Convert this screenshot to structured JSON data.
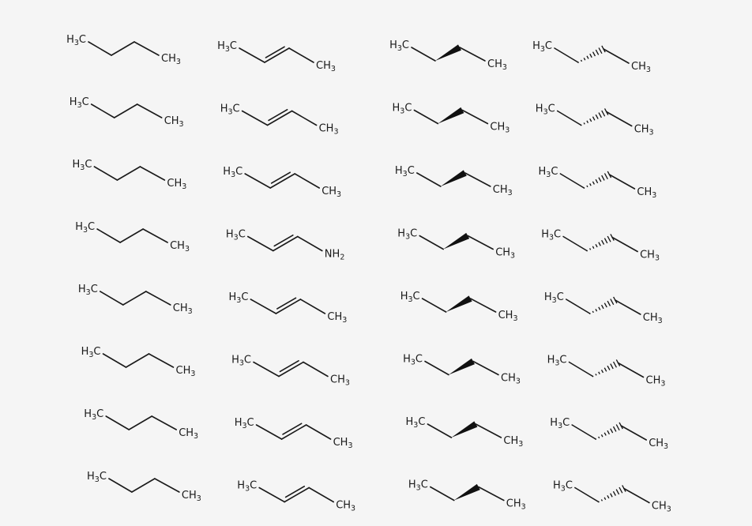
{
  "grid_columns": [
    {
      "type": "butane",
      "molecules": [
        {
          "left": "H3C",
          "right": "CH3"
        },
        {
          "left": "H3C",
          "right": "CH3"
        },
        {
          "left": "H3C",
          "right": "CH3"
        },
        {
          "left": "H3C",
          "right": "CH3"
        },
        {
          "left": "H3C",
          "right": "CH3"
        },
        {
          "left": "H3C",
          "right": "CH3"
        },
        {
          "left": "H3C",
          "right": "CH3"
        },
        {
          "left": "H3C",
          "right": "CH3"
        }
      ]
    },
    {
      "type": "trans-alkene",
      "molecules": [
        {
          "left": "H3C",
          "right": "CH3"
        },
        {
          "left": "H3C",
          "right": "CH3"
        },
        {
          "left": "H3C",
          "right": "CH3"
        },
        {
          "left": "H3C",
          "right": "NH2",
          "right_color": "#3355dd"
        },
        {
          "left": "H3C",
          "right": "CH3"
        },
        {
          "left": "H3C",
          "right": "CH3"
        },
        {
          "left": "H3C",
          "right": "CH3"
        },
        {
          "left": "H3C",
          "right": "CH3"
        }
      ]
    },
    {
      "type": "wedge-bond",
      "molecules": [
        {
          "left": "H3C",
          "right": "CH3"
        },
        {
          "left": "H3C",
          "right": "CH3"
        },
        {
          "left": "H3C",
          "right": "CH3"
        },
        {
          "left": "H3C",
          "right": "CH3"
        },
        {
          "left": "H3C",
          "right": "CH3"
        },
        {
          "left": "H3C",
          "right": "CH3"
        },
        {
          "left": "H3C",
          "right": "CH3"
        },
        {
          "left": "H3C",
          "right": "CH3"
        }
      ]
    },
    {
      "type": "hashed-bond",
      "molecules": [
        {
          "left": "H3C",
          "right": "CH3"
        },
        {
          "left": "H3C",
          "right": "CH3"
        },
        {
          "left": "H3C",
          "right": "CH3"
        },
        {
          "left": "H3C",
          "right": "CH3"
        },
        {
          "left": "H3C",
          "right": "CH3"
        },
        {
          "left": "H3C",
          "right": "CH3"
        },
        {
          "left": "H3C",
          "right": "CH3"
        },
        {
          "left": "H3C",
          "right": "CH3"
        }
      ]
    }
  ]
}
